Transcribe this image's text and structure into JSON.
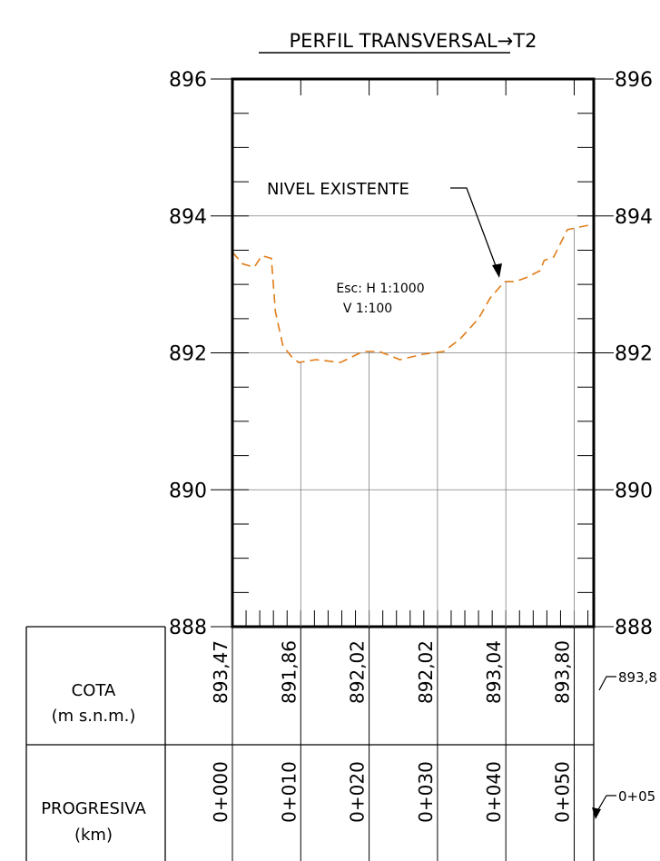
{
  "title": {
    "text": "PERFIL  TRANSVERSAL",
    "suffix": "→T2"
  },
  "scale_note": {
    "line1": "Esc: H 1:1000",
    "line2": "V 1:100"
  },
  "annotation": {
    "label": "NIVEL  EXISTENTE"
  },
  "table": {
    "cota_label_line1": "COTA",
    "cota_label_line2": "(m  s.n.m.)",
    "progresiva_label_line1": "PROGRESIVA",
    "progresiva_label_line2": "(km)",
    "cota_values": [
      "893,47",
      "891,86",
      "892,02",
      "892,02",
      "893,04",
      "893,80"
    ],
    "cota_end": "893,8",
    "progresiva_values": [
      "0+000",
      "0+010",
      "0+020",
      "0+030",
      "0+040",
      "0+050"
    ],
    "progresiva_end": "0+05"
  },
  "colors": {
    "terrain": "#e07d18",
    "frame": "#000000",
    "grid": "#808080"
  },
  "chart_data": {
    "type": "line",
    "title": "PERFIL  TRANSVERSAL→T2",
    "xlabel": "PROGRESIVA (km)",
    "ylabel": "COTA (m s.n.m.)",
    "xlim": [
      0,
      53
    ],
    "ylim": [
      888,
      896
    ],
    "y_ticks": [
      888,
      890,
      892,
      894,
      896
    ],
    "y_tick_labels": [
      "888",
      "890",
      "892",
      "894",
      "896"
    ],
    "grid": true,
    "series": [
      {
        "name": "NIVEL  EXISTENTE",
        "line_style": "dashed",
        "x": [
          0,
          1.5,
          3.2,
          4.3,
          5.7,
          6.3,
          7.4,
          8.6,
          9.7,
          12.2,
          15.8,
          19.1,
          21.5,
          24.5,
          27.9,
          30.9,
          33.3,
          36,
          37.7,
          39.8,
          41.4,
          43,
          45,
          45.6,
          47,
          48,
          49,
          52.9
        ],
        "y": [
          893.47,
          893.3,
          893.25,
          893.42,
          893.38,
          892.6,
          892.1,
          891.95,
          891.86,
          891.9,
          891.86,
          892.02,
          892.02,
          891.9,
          891.98,
          892.02,
          892.2,
          892.5,
          892.8,
          893.04,
          893.04,
          893.1,
          893.2,
          893.35,
          893.4,
          893.6,
          893.8,
          893.88
        ]
      }
    ]
  }
}
